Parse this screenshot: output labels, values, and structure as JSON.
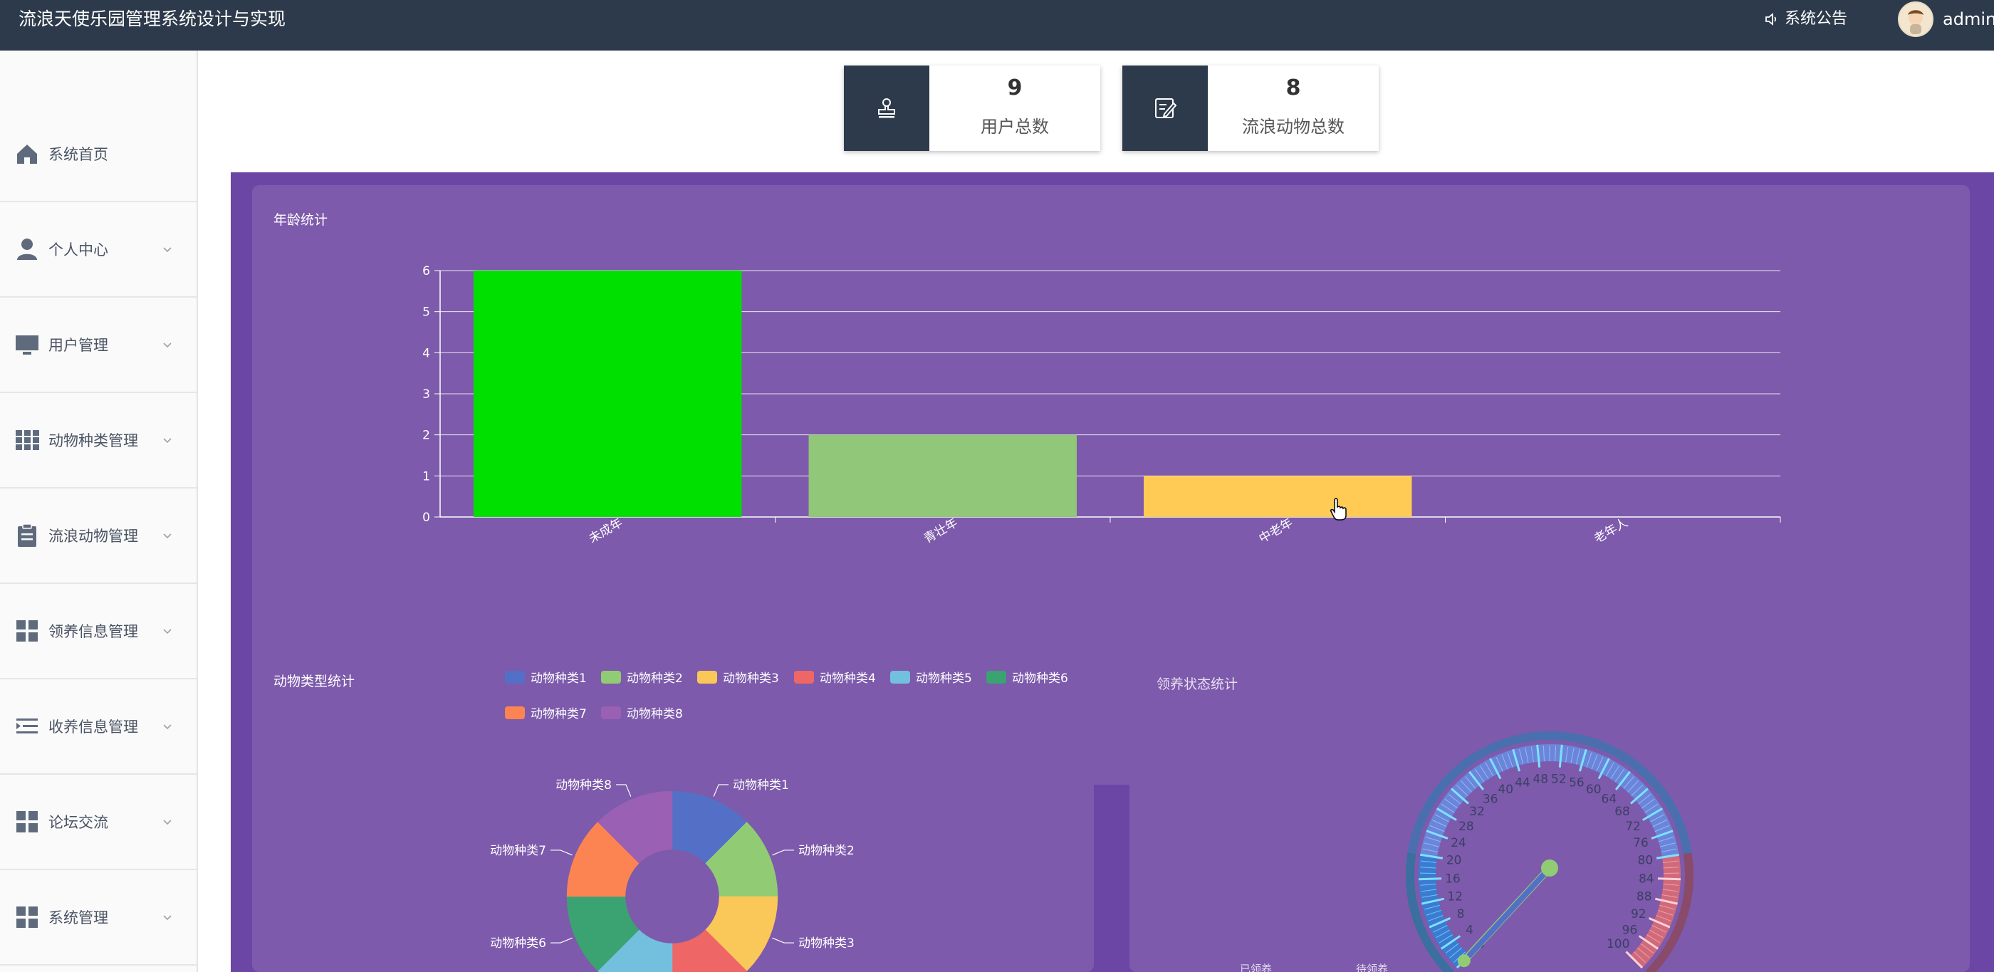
{
  "header": {
    "title": "流浪天使乐园管理系统设计与实现",
    "notice_label": "系统公告",
    "username": "admin"
  },
  "sidebar": {
    "items": [
      {
        "label": "系统首页",
        "icon": "home-icon",
        "has_chevron": false
      },
      {
        "label": "个人中心",
        "icon": "user-icon",
        "has_chevron": true
      },
      {
        "label": "用户管理",
        "icon": "monitor-icon",
        "has_chevron": true
      },
      {
        "label": "动物种类管理",
        "icon": "grid-icon",
        "has_chevron": true
      },
      {
        "label": "流浪动物管理",
        "icon": "clipboard-icon",
        "has_chevron": true
      },
      {
        "label": "领养信息管理",
        "icon": "apps-icon",
        "has_chevron": true
      },
      {
        "label": "收养信息管理",
        "icon": "indent-icon",
        "has_chevron": true
      },
      {
        "label": "论坛交流",
        "icon": "apps-icon",
        "has_chevron": true
      },
      {
        "label": "系统管理",
        "icon": "apps-icon",
        "has_chevron": true
      }
    ]
  },
  "stats": [
    {
      "value": "9",
      "label": "用户总数",
      "icon": "stamp-icon"
    },
    {
      "value": "8",
      "label": "流浪动物总数",
      "icon": "edit-note-icon"
    }
  ],
  "age_panel": {
    "title": "年龄统计"
  },
  "type_panel": {
    "title": "动物类型统计"
  },
  "adopt_panel": {
    "title": "领养状态统计",
    "legend_partial": [
      "已领养",
      "待领养"
    ]
  },
  "colors": {
    "header_bg": "#2d3a4b",
    "purple_bg": "#6b46a5",
    "panel_bg": "#7d5aab"
  },
  "chart_data": [
    {
      "type": "bar",
      "title": "年龄统计",
      "categories": [
        "未成年",
        "青壮年",
        "中老年",
        "老年人"
      ],
      "values": [
        6,
        2,
        1,
        0
      ],
      "colors": [
        "#00e000",
        "#91c779",
        "#ffcb55",
        "#5b8ff9"
      ],
      "ylim": [
        0,
        6
      ],
      "yticks": [
        0,
        1,
        2,
        3,
        4,
        5,
        6
      ],
      "grid": true
    },
    {
      "type": "pie",
      "title": "动物类型统计",
      "labels": [
        "动物种类1",
        "动物种类2",
        "动物种类3",
        "动物种类4",
        "动物种类5",
        "动物种类6",
        "动物种类7",
        "动物种类8"
      ],
      "values": [
        1,
        1,
        1,
        1,
        1,
        1,
        1,
        1
      ],
      "colors": [
        "#5470c6",
        "#91cc75",
        "#fac858",
        "#ee6666",
        "#73c0de",
        "#3ba272",
        "#fc8452",
        "#9a60b4"
      ],
      "legend": "top-right"
    },
    {
      "type": "gauge",
      "title": "领养状态统计",
      "min": 0,
      "max": 100,
      "ticks": [
        0,
        4,
        8,
        12,
        16,
        20,
        24,
        28,
        32,
        36,
        40,
        44,
        48,
        52,
        56,
        60,
        64,
        68,
        72,
        76,
        80,
        84,
        88,
        92,
        96,
        100
      ],
      "needles": [
        {
          "name": "已领养",
          "value": 43,
          "color": "#91cc75"
        },
        {
          "name": "待领养",
          "value": 43,
          "color": "#5470c6"
        }
      ]
    }
  ]
}
